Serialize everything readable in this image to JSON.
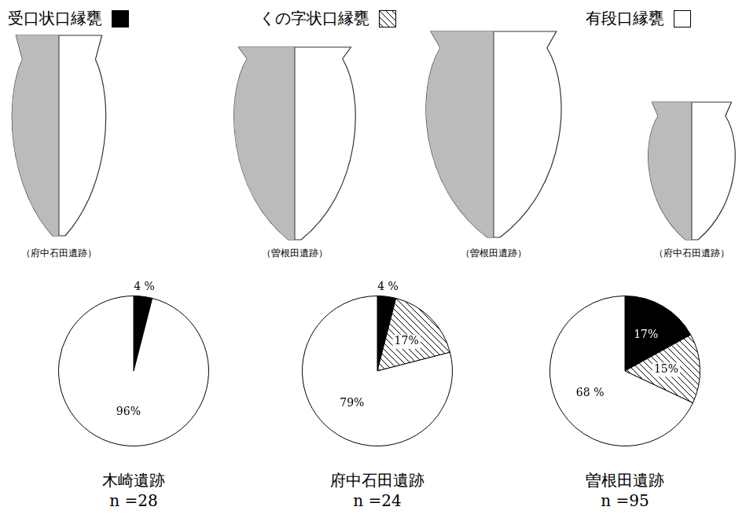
{
  "legend": {
    "position": "top",
    "items": [
      {
        "name": "受口状口縁甕",
        "color": "#000000"
      },
      {
        "name": "くの字状口縁甕",
        "color": "hatch"
      },
      {
        "name": "有段口縁甕",
        "color": "#ffffff"
      }
    ]
  },
  "illustrations": [
    {
      "caption": "（府中石田遺跡）"
    },
    {
      "caption": "（曽根田遺跡）"
    },
    {
      "caption": "（曽根田遺跡）"
    },
    {
      "caption": "（府中石田遺跡）"
    }
  ],
  "chart_data": [
    {
      "type": "pie",
      "title": "木崎遺跡",
      "subtitle": "n =28",
      "categories": [
        "受口状口縁甕",
        "有段口縁甕"
      ],
      "values": [
        4,
        96
      ],
      "value_labels": [
        "4 %",
        "96%"
      ],
      "colors": [
        "#000000",
        "#ffffff"
      ],
      "data_labels": true
    },
    {
      "type": "pie",
      "title": "府中石田遺跡",
      "subtitle": "n =24",
      "categories": [
        "受口状口縁甕",
        "くの字状口縁甕",
        "有段口縁甕"
      ],
      "values": [
        4,
        17,
        79
      ],
      "value_labels": [
        "4 %",
        "17%",
        "79%"
      ],
      "colors": [
        "#000000",
        "hatch",
        "#ffffff"
      ],
      "data_labels": true
    },
    {
      "type": "pie",
      "title": "曽根田遺跡",
      "subtitle": "n =95",
      "categories": [
        "受口状口縁甕",
        "くの字状口縁甕",
        "有段口縁甕"
      ],
      "values": [
        17,
        15,
        68
      ],
      "value_labels": [
        "17%",
        "15%",
        "68 %"
      ],
      "colors": [
        "#000000",
        "hatch",
        "#ffffff"
      ],
      "data_labels": true
    }
  ]
}
